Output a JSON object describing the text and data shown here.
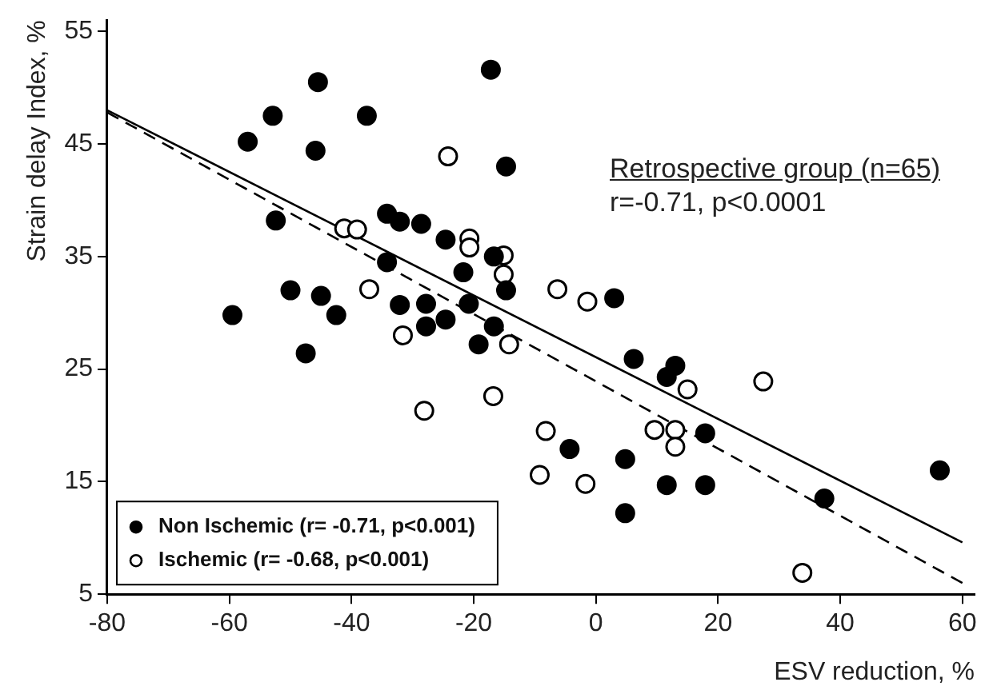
{
  "chart_data": {
    "type": "scatter",
    "xlabel": "ESV reduction, %",
    "ylabel": "Strain delay Index, %",
    "xlim": [
      -80,
      62
    ],
    "xticks": [
      -80,
      -60,
      -40,
      -20,
      0,
      20,
      40,
      60
    ],
    "ylim": [
      5,
      56
    ],
    "yticks": [
      5,
      15,
      25,
      35,
      45,
      55
    ],
    "grid": false,
    "legend": "bottom left",
    "marker": "circle",
    "annotations": [
      "Retrospective group (n=65)",
      "r=-0.71, p<0.0001"
    ],
    "series": [
      {
        "name": "Non Ischemic (r= -0.71, p<0.001)",
        "color": "#000000",
        "x": [
          -45.5,
          -17.2,
          -52.9,
          -37.5,
          -57.0,
          -45.9,
          -14.7,
          -52.4,
          -34.2,
          -32.1,
          -28.6,
          -24.6,
          -16.7,
          -21.7,
          -14.7,
          -34.2,
          -50.0,
          -45.0,
          -32.1,
          -27.8,
          -20.8,
          -59.5,
          -42.5,
          -47.5,
          -27.8,
          -24.6,
          -16.7,
          -19.2,
          3.0,
          6.2,
          13.0,
          11.6,
          17.9,
          -4.3,
          4.8,
          11.6,
          17.9,
          4.8,
          37.4,
          56.3
        ],
        "values": [
          50.5,
          51.6,
          47.5,
          47.5,
          45.2,
          44.4,
          43.0,
          38.2,
          38.8,
          38.1,
          37.9,
          36.5,
          35.0,
          33.6,
          32.0,
          34.5,
          32.0,
          31.5,
          30.7,
          30.8,
          30.8,
          29.8,
          29.8,
          26.4,
          28.8,
          29.4,
          28.8,
          27.2,
          31.3,
          25.9,
          25.3,
          24.3,
          19.3,
          17.9,
          17.0,
          14.7,
          14.7,
          12.2,
          13.5,
          16.0
        ]
      },
      {
        "name": "Ischemic (r= -0.68, p<0.001)",
        "color": "#ffffff",
        "x": [
          -24.2,
          -41.2,
          -39.1,
          -20.7,
          -20.7,
          -15.1,
          -15.1,
          -37.1,
          -31.6,
          -14.2,
          -16.8,
          -28.1,
          -8.2,
          -9.2,
          -6.3,
          -1.4,
          15.0,
          27.4,
          9.6,
          13.0,
          13.0,
          -1.7,
          33.8
        ],
        "values": [
          43.9,
          37.5,
          37.4,
          36.6,
          35.8,
          35.1,
          33.4,
          32.1,
          28.0,
          27.2,
          22.6,
          21.3,
          19.5,
          15.6,
          32.1,
          31.0,
          23.2,
          23.9,
          19.6,
          19.6,
          18.1,
          14.8,
          6.9
        ]
      },
      {
        "type": "line",
        "color": "#000000",
        "line_style": "solid",
        "marker": "none",
        "x": [
          -80,
          60
        ],
        "values": [
          48.0,
          9.6
        ]
      },
      {
        "type": "line",
        "color": "#000000",
        "line_style": "dashed",
        "marker": "none",
        "x": [
          -80,
          60
        ],
        "values": [
          47.8,
          6.0
        ]
      }
    ]
  }
}
